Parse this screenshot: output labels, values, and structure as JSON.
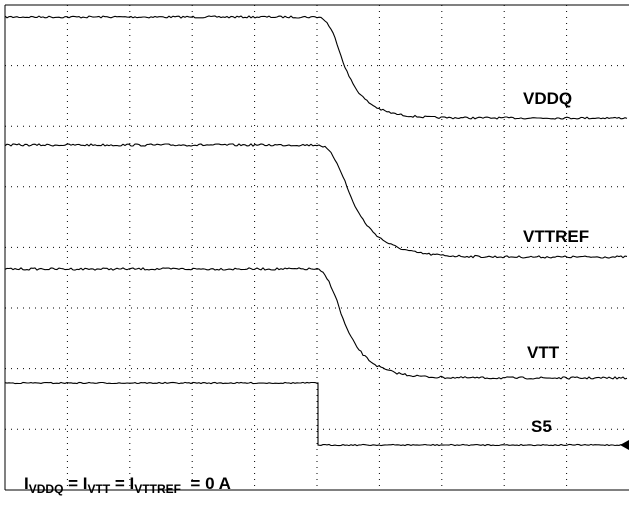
{
  "traces": [
    {
      "label": "VDDQ"
    },
    {
      "label": "VTTREF"
    },
    {
      "label": "VTT"
    },
    {
      "label": "S5"
    }
  ],
  "annotation": [
    "I",
    "VDDQ",
    " = I",
    "VTT",
    " = I",
    "VTTREF",
    "  = 0 A"
  ]
}
